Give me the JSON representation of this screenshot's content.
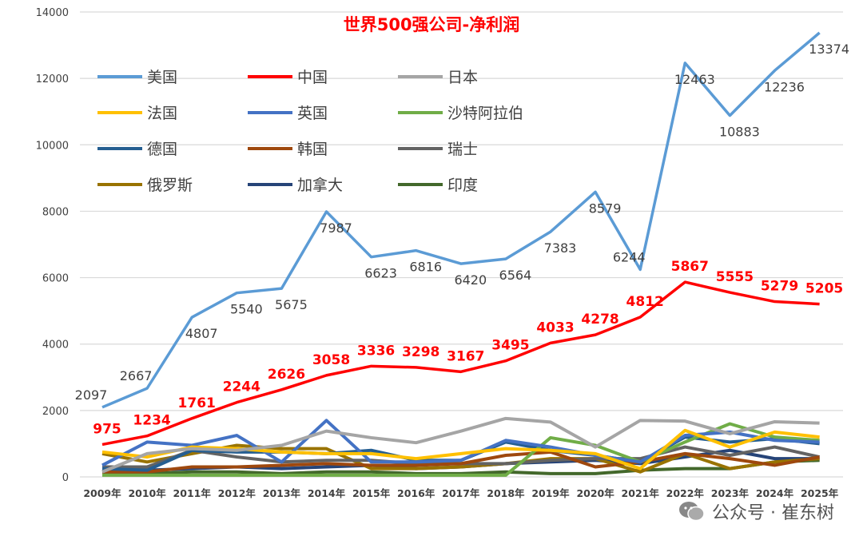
{
  "chart_data": {
    "type": "line",
    "title": "世界500强公司-净利润",
    "title_color": "#FF0000",
    "categories": [
      "2009年",
      "2010年",
      "2011年",
      "2012年",
      "2013年",
      "2014年",
      "2015年",
      "2016年",
      "2017年",
      "2018年",
      "2019年",
      "2020年",
      "2021年",
      "2022年",
      "2023年",
      "2024年",
      "2025年"
    ],
    "ylim": [
      0,
      14000
    ],
    "yticks": [
      0,
      2000,
      4000,
      6000,
      8000,
      10000,
      12000,
      14000
    ],
    "grid": true,
    "legend_position": "top-left",
    "series": [
      {
        "name": "美国",
        "color": "#5B9BD5",
        "labels": true,
        "label_color": "#404040",
        "values": [
          2097,
          2667,
          4807,
          5540,
          5675,
          7987,
          6623,
          6816,
          6420,
          6564,
          7383,
          8579,
          6244,
          12463,
          10883,
          12236,
          13374
        ]
      },
      {
        "name": "中国",
        "color": "#FF0000",
        "labels": true,
        "label_color": "#FF0000",
        "values": [
          975,
          1234,
          1761,
          2244,
          2626,
          3058,
          3336,
          3298,
          3167,
          3495,
          4033,
          4278,
          4812,
          5867,
          5555,
          5279,
          5205
        ]
      },
      {
        "name": "日本",
        "color": "#A5A5A5",
        "values": [
          150,
          700,
          850,
          800,
          950,
          1380,
          1180,
          1030,
          1380,
          1760,
          1650,
          900,
          1700,
          1680,
          1300,
          1660,
          1620
        ]
      },
      {
        "name": "法国",
        "color": "#FFC000",
        "values": [
          750,
          600,
          900,
          850,
          750,
          700,
          700,
          550,
          700,
          850,
          800,
          700,
          250,
          1400,
          900,
          1350,
          1200
        ]
      },
      {
        "name": "英国",
        "color": "#4472C4",
        "values": [
          350,
          1050,
          950,
          1250,
          450,
          1700,
          450,
          450,
          500,
          1100,
          900,
          650,
          450,
          1250,
          1350,
          1100,
          1050
        ]
      },
      {
        "name": "沙特阿拉伯",
        "color": "#70AD47",
        "values": [
          50,
          50,
          50,
          50,
          50,
          50,
          50,
          50,
          50,
          50,
          1180,
          950,
          450,
          1050,
          1600,
          1200,
          1100
        ]
      },
      {
        "name": "德国",
        "color": "#255E91",
        "values": [
          250,
          200,
          800,
          750,
          750,
          700,
          800,
          500,
          500,
          1050,
          800,
          650,
          450,
          1200,
          1050,
          1150,
          1000
        ]
      },
      {
        "name": "韩国",
        "color": "#9E480E",
        "values": [
          150,
          150,
          300,
          300,
          350,
          400,
          350,
          350,
          400,
          650,
          750,
          300,
          450,
          700,
          550,
          350,
          600
        ]
      },
      {
        "name": "瑞士",
        "color": "#636363",
        "values": [
          300,
          300,
          800,
          600,
          450,
          500,
          500,
          400,
          400,
          400,
          500,
          550,
          550,
          900,
          650,
          900,
          600
        ]
      },
      {
        "name": "俄罗斯",
        "color": "#997300",
        "values": [
          700,
          450,
          700,
          950,
          850,
          850,
          250,
          250,
          300,
          400,
          550,
          550,
          150,
          700,
          250,
          450,
          550
        ]
      },
      {
        "name": "加拿大",
        "color": "#264478",
        "values": [
          250,
          200,
          250,
          300,
          250,
          300,
          350,
          250,
          300,
          400,
          450,
          500,
          400,
          600,
          800,
          550,
          550
        ]
      },
      {
        "name": "印度",
        "color": "#43682B",
        "values": [
          100,
          100,
          150,
          150,
          100,
          150,
          150,
          100,
          100,
          150,
          100,
          100,
          200,
          250,
          250,
          450,
          500
        ]
      }
    ]
  },
  "watermark": {
    "text": "公众号 · 崔东树",
    "icon": "wechat-icon"
  }
}
